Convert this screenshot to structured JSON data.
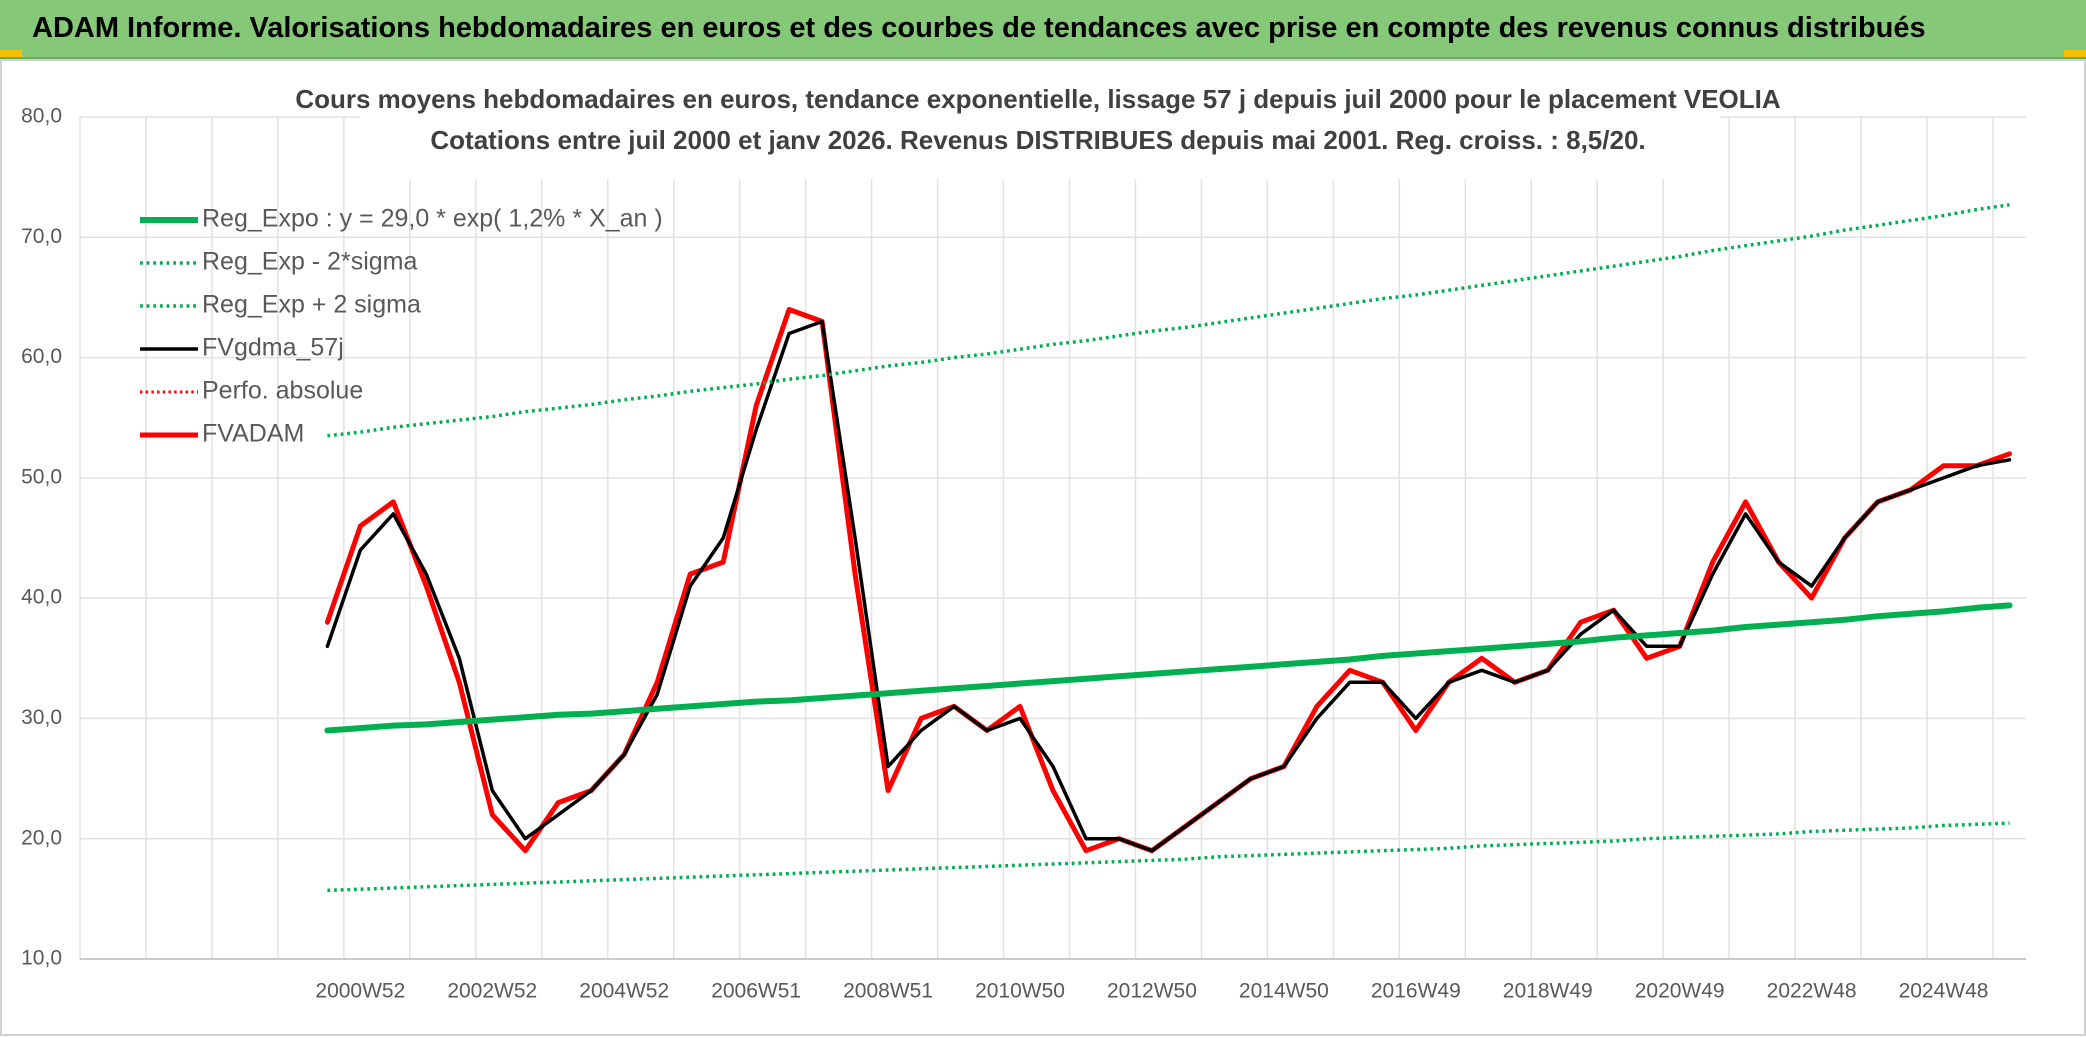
{
  "header": "ADAM Informe. Valorisations hebdomadaires en euros et des courbes de tendances avec prise en compte des revenus connus distribués",
  "chart_data": {
    "type": "line",
    "title": "Cours moyens hebdomadaires en euros, tendance exponentielle, lissage 57 j depuis juil 2000 pour le placement VEOLIA",
    "subtitle": "Cotations entre juil 2000 et janv 2026. Revenus DISTRIBUES depuis mai 2001. Reg. croiss. : 8,5/20.",
    "categories": [
      null,
      null,
      null,
      null,
      null,
      null,
      null,
      null,
      "2000W52",
      null,
      null,
      null,
      "2002W52",
      null,
      null,
      null,
      "2004W52",
      null,
      null,
      null,
      "2006W51",
      null,
      null,
      null,
      "2008W51",
      null,
      null,
      null,
      "2010W50",
      null,
      null,
      null,
      "2012W50",
      null,
      null,
      null,
      "2014W50",
      null,
      null,
      null,
      "2016W49",
      null,
      null,
      null,
      "2018W49",
      null,
      null,
      null,
      "2020W49",
      null,
      null,
      null,
      "2022W48",
      null,
      null,
      null,
      "2024W48",
      null,
      null
    ],
    "ylim": [
      10,
      80
    ],
    "yticks": [
      {
        "value": 10,
        "label": "10,0"
      },
      {
        "value": 20,
        "label": "20,0"
      },
      {
        "value": 30,
        "label": "30,0"
      },
      {
        "value": 40,
        "label": "40,0"
      },
      {
        "value": 50,
        "label": "50,0"
      },
      {
        "value": 60,
        "label": "60,0"
      },
      {
        "value": 70,
        "label": "70,0"
      },
      {
        "value": 80,
        "label": "80,0"
      }
    ],
    "grid": true,
    "legend": "top-left",
    "series": [
      {
        "name": "Reg_Expo : y = 29,0 * exp( 1,2% *  X_an )",
        "color": "#00b050",
        "style": "solid",
        "width": 6,
        "values": [
          null,
          null,
          null,
          null,
          null,
          null,
          null,
          29.0,
          29.2,
          29.4,
          29.5,
          29.7,
          29.9,
          30.1,
          30.3,
          30.4,
          30.6,
          30.8,
          31.0,
          31.2,
          31.4,
          31.5,
          31.7,
          31.9,
          32.1,
          32.3,
          32.5,
          32.7,
          32.9,
          33.1,
          33.3,
          33.5,
          33.7,
          33.9,
          34.1,
          34.3,
          34.5,
          34.7,
          34.9,
          35.2,
          35.4,
          35.6,
          35.8,
          36.0,
          36.2,
          36.4,
          36.7,
          36.9,
          37.1,
          37.3,
          37.6,
          37.8,
          38.0,
          38.2,
          38.5,
          38.7,
          38.9,
          39.2,
          39.4
        ]
      },
      {
        "name": "Reg_Exp - 2*sigma",
        "color": "#00b050",
        "style": "dotted",
        "width": 3.5,
        "values": [
          null,
          null,
          null,
          null,
          null,
          null,
          null,
          15.7,
          15.8,
          15.9,
          16.0,
          16.1,
          16.2,
          16.3,
          16.4,
          16.5,
          16.6,
          16.7,
          16.8,
          16.9,
          17.0,
          17.1,
          17.2,
          17.3,
          17.4,
          17.5,
          17.6,
          17.7,
          17.8,
          17.9,
          18.0,
          18.1,
          18.2,
          18.3,
          18.5,
          18.6,
          18.7,
          18.8,
          18.9,
          19.0,
          19.1,
          19.2,
          19.4,
          19.5,
          19.6,
          19.7,
          19.8,
          20.0,
          20.1,
          20.2,
          20.3,
          20.4,
          20.6,
          20.7,
          20.8,
          20.9,
          21.1,
          21.2,
          21.3
        ]
      },
      {
        "name": "Reg_Exp + 2 sigma",
        "color": "#00b050",
        "style": "dotted",
        "width": 3.5,
        "values": [
          null,
          null,
          null,
          null,
          null,
          null,
          null,
          53.5,
          53.8,
          54.2,
          54.5,
          54.8,
          55.1,
          55.5,
          55.8,
          56.1,
          56.5,
          56.8,
          57.2,
          57.5,
          57.8,
          58.2,
          58.5,
          58.9,
          59.3,
          59.6,
          60.0,
          60.3,
          60.7,
          61.1,
          61.4,
          61.8,
          62.2,
          62.5,
          62.9,
          63.3,
          63.7,
          64.1,
          64.5,
          64.9,
          65.2,
          65.6,
          66.0,
          66.4,
          66.8,
          67.2,
          67.6,
          68.0,
          68.4,
          68.9,
          69.3,
          69.7,
          70.1,
          70.6,
          71.0,
          71.4,
          71.8,
          72.3,
          72.7
        ]
      },
      {
        "name": "FVgdma_57j",
        "color": "#000000",
        "style": "solid",
        "width": 3.5,
        "values": [
          null,
          null,
          null,
          null,
          null,
          null,
          null,
          36,
          44,
          47,
          42,
          35,
          24,
          20,
          22,
          24,
          27,
          32,
          41,
          45,
          54,
          62,
          63,
          45,
          26,
          29,
          31,
          29,
          30,
          26,
          20,
          20,
          19,
          21,
          23,
          25,
          26,
          30,
          33,
          33,
          30,
          33,
          34,
          33,
          34,
          37,
          39,
          36,
          36,
          42,
          47,
          43,
          41,
          45,
          48,
          49,
          50,
          51,
          51.5
        ]
      },
      {
        "name": "Perfo. absolue",
        "color": "#ff0000",
        "style": "dotted",
        "width": 3,
        "values": [
          null,
          null,
          null,
          null,
          null,
          null,
          null,
          38,
          46,
          48,
          41,
          33,
          22,
          19,
          23,
          24,
          27,
          33,
          42,
          43,
          56,
          64,
          63,
          42,
          24,
          30,
          31,
          29,
          31,
          24,
          19,
          20,
          19,
          21,
          23,
          25,
          26,
          31,
          34,
          33,
          29,
          33,
          35,
          33,
          34,
          38,
          39,
          35,
          36,
          43,
          48,
          43,
          40,
          45,
          48,
          49,
          51,
          51,
          52
        ]
      },
      {
        "name": "FVADAM",
        "color": "#ff0000",
        "style": "solid",
        "width": 5,
        "values": [
          null,
          null,
          null,
          null,
          null,
          null,
          null,
          38,
          46,
          48,
          41,
          33,
          22,
          19,
          23,
          24,
          27,
          33,
          42,
          43,
          56,
          64,
          63,
          42,
          24,
          30,
          31,
          29,
          31,
          24,
          19,
          20,
          19,
          21,
          23,
          25,
          26,
          31,
          34,
          33,
          29,
          33,
          35,
          33,
          34,
          38,
          39,
          35,
          36,
          43,
          48,
          43,
          40,
          45,
          48,
          49,
          51,
          51,
          52
        ]
      }
    ]
  }
}
